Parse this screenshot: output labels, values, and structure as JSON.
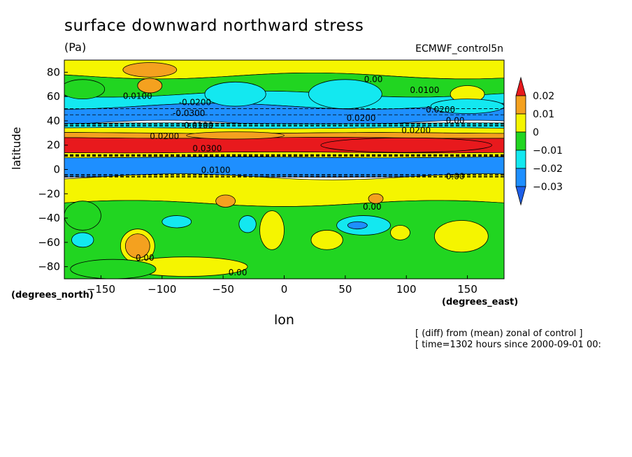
{
  "chart_data": {
    "type": "heatmap",
    "title": "surface downward northward stress",
    "units": "(Pa)",
    "model": "ECMWF_control5n",
    "xlabel": "lon",
    "ylabel": "latitude",
    "x_units": "(degrees_east)",
    "y_units": "(degrees_north)",
    "notes": [
      "[ (diff) from (mean) zonal of control ]",
      "[ time=1302 hours since 2000-09-01 00:"
    ],
    "xlim": [
      -180,
      180
    ],
    "ylim": [
      -90,
      90
    ],
    "x_ticks": [
      -150,
      -100,
      -50,
      0,
      50,
      100,
      150
    ],
    "y_ticks": [
      80,
      60,
      40,
      20,
      0,
      -20,
      -40,
      -60,
      -80
    ],
    "colorbar": {
      "levels": [
        0.02,
        0.01,
        0,
        -0.01,
        -0.02,
        -0.03
      ],
      "labels": [
        "0.02",
        "0.01",
        "0",
        "−0.01",
        "−0.02",
        "−0.03"
      ],
      "colors": [
        "#e8191d",
        "#f4a11f",
        "#f5f500",
        "#21d521",
        "#13e8f0",
        "#1e8fff",
        "#1e5fe8"
      ]
    },
    "zonal_bands": [
      {
        "lat_top": 90,
        "lat_bottom": 77,
        "color": "#f5f500"
      },
      {
        "lat_top": 77,
        "lat_bottom": 62,
        "color": "#21d521"
      },
      {
        "lat_top": 62,
        "lat_bottom": 52,
        "color": "#13e8f0"
      },
      {
        "lat_top": 52,
        "lat_bottom": 38,
        "color": "#1e8fff"
      },
      {
        "lat_top": 38,
        "lat_bottom": 34,
        "color": "#13e8f0"
      },
      {
        "lat_top": 34,
        "lat_bottom": 30,
        "color": "#f5f500"
      },
      {
        "lat_top": 30,
        "lat_bottom": 26,
        "color": "#f4a11f"
      },
      {
        "lat_top": 26,
        "lat_bottom": 14,
        "color": "#e8191d"
      },
      {
        "lat_top": 14,
        "lat_bottom": 10,
        "color": "#f5f500"
      },
      {
        "lat_top": 10,
        "lat_bottom": -6,
        "color": "#1e8fff"
      },
      {
        "lat_top": -6,
        "lat_bottom": -28,
        "color": "#f5f500"
      },
      {
        "lat_top": -28,
        "lat_bottom": -90,
        "color": "#21d521"
      }
    ],
    "features": [
      {
        "lon": -110,
        "lat": 82,
        "rlon": 22,
        "rlat": 6,
        "color": "#f4a11f"
      },
      {
        "lon": -110,
        "lat": 69,
        "rlon": 10,
        "rlat": 6,
        "color": "#f4a11f"
      },
      {
        "lon": 150,
        "lat": 62,
        "rlon": 14,
        "rlat": 7,
        "color": "#f5f500"
      },
      {
        "lon": -165,
        "lat": 66,
        "rlon": 18,
        "rlat": 8,
        "color": "#21d521"
      },
      {
        "lon": -40,
        "lat": 62,
        "rlon": 25,
        "rlat": 10,
        "color": "#13e8f0"
      },
      {
        "lon": 50,
        "lat": 62,
        "rlon": 30,
        "rlat": 12,
        "color": "#13e8f0"
      },
      {
        "lon": 150,
        "lat": 52,
        "rlon": 30,
        "rlat": 6,
        "color": "#13e8f0"
      },
      {
        "lon": 100,
        "lat": 20,
        "rlon": 70,
        "rlat": 6,
        "color": "#e8191d"
      },
      {
        "lon": -40,
        "lat": 28,
        "rlon": 40,
        "rlat": 3,
        "color": "#f4a11f"
      },
      {
        "lon": -48,
        "lat": -26,
        "rlon": 8,
        "rlat": 5,
        "color": "#f4a11f"
      },
      {
        "lon": 75,
        "lat": -24,
        "rlon": 6,
        "rlat": 4,
        "color": "#f4a11f"
      },
      {
        "lon": -165,
        "lat": -38,
        "rlon": 15,
        "rlat": 12,
        "color": "#21d521"
      },
      {
        "lon": -120,
        "lat": -63,
        "rlon": 14,
        "rlat": 14,
        "color": "#f5f500"
      },
      {
        "lon": -120,
        "lat": -63,
        "rlon": 10,
        "rlat": 10,
        "color": "#f4a11f"
      },
      {
        "lon": -165,
        "lat": -58,
        "rlon": 9,
        "rlat": 6,
        "color": "#13e8f0"
      },
      {
        "lon": -88,
        "lat": -43,
        "rlon": 12,
        "rlat": 5,
        "color": "#13e8f0"
      },
      {
        "lon": -30,
        "lat": -45,
        "rlon": 7,
        "rlat": 7,
        "color": "#13e8f0"
      },
      {
        "lon": 65,
        "lat": -46,
        "rlon": 22,
        "rlat": 8,
        "color": "#13e8f0"
      },
      {
        "lon": 60,
        "lat": -46,
        "rlon": 8,
        "rlat": 3,
        "color": "#1e8fff"
      },
      {
        "lon": -10,
        "lat": -50,
        "rlon": 10,
        "rlat": 16,
        "color": "#f5f500"
      },
      {
        "lon": 35,
        "lat": -58,
        "rlon": 13,
        "rlat": 8,
        "color": "#f5f500"
      },
      {
        "lon": 145,
        "lat": -55,
        "rlon": 22,
        "rlat": 13,
        "color": "#f5f500"
      },
      {
        "lon": 95,
        "lat": -52,
        "rlon": 8,
        "rlat": 6,
        "color": "#f5f500"
      },
      {
        "lon": -80,
        "lat": -80,
        "rlon": 50,
        "rlat": 8,
        "color": "#f5f500"
      },
      {
        "lon": -140,
        "lat": -82,
        "rlon": 35,
        "rlat": 8,
        "color": "#21d521"
      }
    ],
    "contour_labels": [
      {
        "lon": -120,
        "lat": 58,
        "text": "0.0100"
      },
      {
        "lon": -73,
        "lat": 53,
        "text": "-0.0200"
      },
      {
        "lon": -78,
        "lat": 44,
        "text": "-0.0300"
      },
      {
        "lon": -70,
        "lat": 34,
        "text": "0.0100"
      },
      {
        "lon": -98,
        "lat": 25,
        "text": "0.0200"
      },
      {
        "lon": -63,
        "lat": 15,
        "text": "0.0300"
      },
      {
        "lon": -56,
        "lat": -3,
        "text": "0.0100"
      },
      {
        "lon": 73,
        "lat": 72,
        "text": "0.00"
      },
      {
        "lon": 115,
        "lat": 63,
        "text": "0.0100"
      },
      {
        "lon": 128,
        "lat": 47,
        "text": "0.0200"
      },
      {
        "lon": 63,
        "lat": 40,
        "text": "0.0200"
      },
      {
        "lon": 108,
        "lat": 30,
        "text": "0.0200"
      },
      {
        "lon": 140,
        "lat": 38,
        "text": "0.00"
      },
      {
        "lon": 140,
        "lat": -8,
        "text": "0.00"
      },
      {
        "lon": 72,
        "lat": -33,
        "text": "0.00"
      },
      {
        "lon": -114,
        "lat": -75,
        "text": "0.00"
      },
      {
        "lon": -38,
        "lat": -87,
        "text": "0.00"
      }
    ]
  }
}
